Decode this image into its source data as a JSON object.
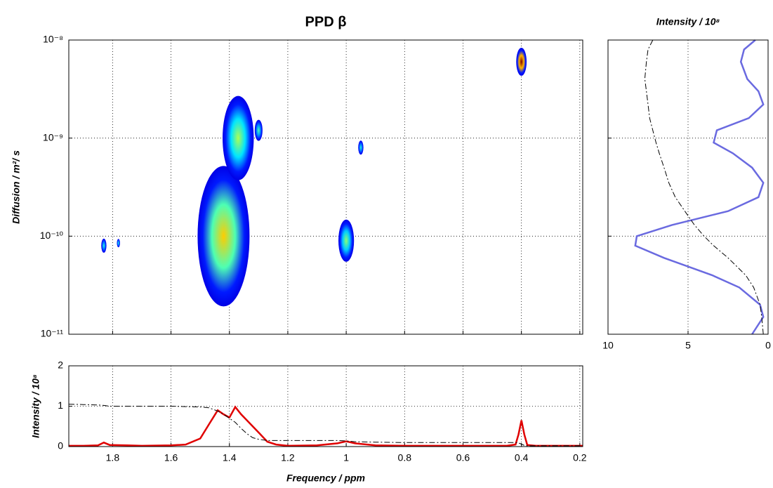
{
  "chart_data": [
    {
      "type": "heatmap",
      "title": "PPD β",
      "ylabel": "Diffusion / m²/ s",
      "xlim": [
        1.95,
        0.19
      ],
      "xticks": [
        1.8,
        1.6,
        1.4,
        1.2,
        1,
        0.8,
        0.6,
        0.4,
        0.2
      ],
      "ylim": [
        1e-11,
        1e-08
      ],
      "yscale": "log",
      "yticks": [
        {
          "value": 1e-11,
          "label": "10⁻¹¹"
        },
        {
          "value": 1e-10,
          "label": "10⁻¹⁰"
        },
        {
          "value": 1e-09,
          "label": "10⁻⁹"
        },
        {
          "value": 1e-08,
          "label": "10⁻⁸"
        }
      ],
      "grid": true,
      "colormap": "jet",
      "peaks": {
        "x": [
          1.42,
          1.37,
          1.3,
          1.0,
          0.95,
          0.4,
          1.83,
          1.78
        ],
        "y": [
          1e-10,
          1e-09,
          1.2e-09,
          9e-11,
          8e-10,
          6e-09,
          8e-11,
          8.5e-11
        ],
        "size": [
          10,
          6,
          1.5,
          3,
          1,
          2,
          1,
          0.6
        ],
        "intensity": [
          0.5,
          0.3,
          0.15,
          0.25,
          0.1,
          1.0,
          0.1,
          0.1
        ]
      }
    },
    {
      "type": "line",
      "xlabel": "Frequency /  ppm",
      "ylabel": "Intensity / 10⁸",
      "xlim": [
        1.95,
        0.19
      ],
      "xticks": [
        1.8,
        1.6,
        1.4,
        1.2,
        1,
        0.8,
        0.6,
        0.4,
        0.2
      ],
      "ylim": [
        0,
        2
      ],
      "yticks": [
        0,
        1,
        2
      ],
      "grid": true,
      "x": [
        1.95,
        1.9,
        1.85,
        1.83,
        1.81,
        1.75,
        1.7,
        1.6,
        1.55,
        1.5,
        1.47,
        1.44,
        1.42,
        1.4,
        1.38,
        1.36,
        1.34,
        1.32,
        1.3,
        1.27,
        1.24,
        1.2,
        1.1,
        1.03,
        1.0,
        0.97,
        0.9,
        0.8,
        0.6,
        0.45,
        0.42,
        0.41,
        0.4,
        0.39,
        0.38,
        0.35,
        0.3,
        0.19
      ],
      "series": [
        {
          "color": "#e00000",
          "style": "solid",
          "values": [
            0.02,
            0.02,
            0.03,
            0.1,
            0.04,
            0.03,
            0.02,
            0.03,
            0.05,
            0.2,
            0.55,
            0.9,
            0.8,
            0.72,
            0.98,
            0.8,
            0.65,
            0.5,
            0.35,
            0.12,
            0.05,
            0.02,
            0.03,
            0.08,
            0.13,
            0.08,
            0.03,
            0.02,
            0.02,
            0.02,
            0.05,
            0.3,
            0.65,
            0.3,
            0.04,
            0.02,
            0.02,
            0.02
          ]
        },
        {
          "color": "#000000",
          "style": "dashdot",
          "values": [
            1.05,
            1.04,
            1.03,
            1.02,
            1.0,
            1.0,
            1.0,
            1.0,
            0.99,
            0.98,
            0.96,
            0.88,
            0.8,
            0.7,
            0.6,
            0.45,
            0.32,
            0.22,
            0.18,
            0.15,
            0.15,
            0.15,
            0.15,
            0.15,
            0.14,
            0.12,
            0.11,
            0.1,
            0.1,
            0.1,
            0.1,
            0.09,
            0.06,
            0.03,
            0.02,
            0.02,
            0.02,
            0.02
          ]
        }
      ]
    },
    {
      "type": "line",
      "orientation": "horizontal",
      "title": "Intensity / 10⁸",
      "xlim": [
        10,
        0
      ],
      "xticks": [
        10,
        5,
        0
      ],
      "ylim": [
        1e-11,
        1e-08
      ],
      "yscale": "log",
      "yticks": [
        1e-11,
        1e-10,
        1e-09,
        1e-08
      ],
      "grid": true,
      "y": [
        1e-08,
        8e-09,
        6e-09,
        4e-09,
        3e-09,
        2.2e-09,
        1.6e-09,
        1.2e-09,
        9e-10,
        7e-10,
        5e-10,
        3.5e-10,
        2.5e-10,
        1.8e-10,
        1.3e-10,
        1e-10,
        8e-11,
        6e-11,
        4e-11,
        3e-11,
        2e-11,
        1.5e-11,
        1e-11
      ],
      "series": [
        {
          "color": "#6a6ae0",
          "style": "solid",
          "values": [
            0.8,
            1.5,
            1.7,
            1.3,
            0.6,
            0.3,
            1.2,
            3.2,
            3.4,
            2.2,
            1.0,
            0.3,
            0.6,
            2.5,
            6.0,
            8.2,
            8.3,
            6.5,
            3.5,
            1.8,
            0.5,
            0.3,
            1.0
          ]
        },
        {
          "color": "#000000",
          "style": "dashdot",
          "values": [
            7.2,
            7.5,
            7.6,
            7.7,
            7.6,
            7.5,
            7.4,
            7.2,
            7.0,
            6.8,
            6.5,
            6.2,
            5.8,
            5.2,
            4.6,
            4.0,
            3.4,
            2.5,
            1.4,
            0.9,
            0.5,
            0.4,
            0.3
          ]
        }
      ]
    }
  ]
}
